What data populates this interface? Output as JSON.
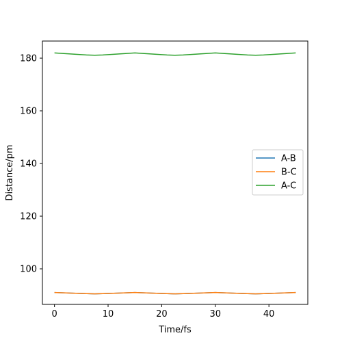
{
  "chart_data": {
    "type": "line",
    "title": "",
    "xlabel": "Time/fs",
    "ylabel": "Distance/pm",
    "xlim": [
      -2.25,
      47.25
    ],
    "ylim": [
      86.5,
      186.5
    ],
    "xticks": [
      0,
      10,
      20,
      30,
      40
    ],
    "yticks": [
      100,
      120,
      140,
      160,
      180
    ],
    "grid": false,
    "legend_position": "center-right",
    "series": [
      {
        "name": "A-B",
        "color": "#1f77b4",
        "x": [
          0,
          3,
          6,
          7.5,
          9,
          12,
          15,
          18,
          21,
          22.5,
          24,
          27,
          30,
          33,
          36,
          37.5,
          39,
          42,
          45
        ],
        "y": [
          91.0,
          90.8,
          90.6,
          90.5,
          90.6,
          90.8,
          91.0,
          90.8,
          90.6,
          90.5,
          90.6,
          90.8,
          91.0,
          90.8,
          90.6,
          90.5,
          90.6,
          90.8,
          91.0
        ]
      },
      {
        "name": "B-C",
        "color": "#ff7f0e",
        "x": [
          0,
          3,
          6,
          7.5,
          9,
          12,
          15,
          18,
          21,
          22.5,
          24,
          27,
          30,
          33,
          36,
          37.5,
          39,
          42,
          45
        ],
        "y": [
          91.0,
          90.8,
          90.6,
          90.5,
          90.6,
          90.8,
          91.0,
          90.8,
          90.6,
          90.5,
          90.6,
          90.8,
          91.0,
          90.8,
          90.6,
          90.5,
          90.6,
          90.8,
          91.0
        ]
      },
      {
        "name": "A-C",
        "color": "#2ca02c",
        "x": [
          0,
          3,
          6,
          7.5,
          9,
          12,
          15,
          18,
          21,
          22.5,
          24,
          27,
          30,
          33,
          36,
          37.5,
          39,
          42,
          45
        ],
        "y": [
          182.0,
          181.6,
          181.2,
          181.1,
          181.2,
          181.6,
          182.0,
          181.6,
          181.2,
          181.1,
          181.2,
          181.6,
          182.0,
          181.6,
          181.2,
          181.1,
          181.2,
          181.6,
          182.0
        ]
      }
    ]
  }
}
